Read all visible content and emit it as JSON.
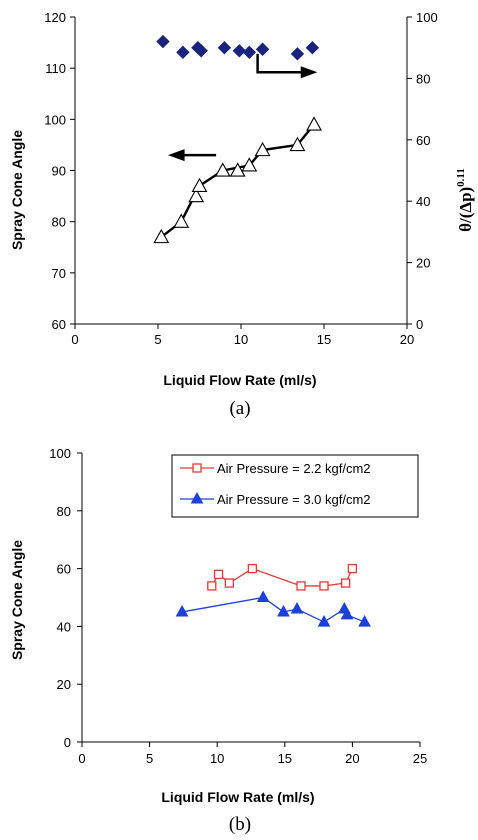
{
  "chart_data": [
    {
      "panel": "(a)",
      "type": "scatter",
      "xlabel": "Liquid Flow Rate (ml/s)",
      "ylabel": "Spray Cone Angle",
      "y2label": "θ/(Δp)0.11",
      "y2label_base": "θ/(Δp)",
      "y2label_exponent": "0.11",
      "xlim": [
        0,
        20
      ],
      "ylim": [
        60,
        120
      ],
      "y2lim": [
        0,
        100
      ],
      "xticks": [
        0,
        5,
        10,
        15,
        20
      ],
      "yticks": [
        60,
        70,
        80,
        90,
        100,
        110,
        120
      ],
      "y2ticks": [
        0,
        20,
        40,
        60,
        80,
        100
      ],
      "grid": false,
      "series": [
        {
          "axis": "left",
          "marker": "open-triangle",
          "color": "#000000",
          "points": [
            {
              "x": 5.2,
              "y": 77
            },
            {
              "x": 6.4,
              "y": 80
            },
            {
              "x": 7.3,
              "y": 85
            },
            {
              "x": 7.5,
              "y": 87
            },
            {
              "x": 8.9,
              "y": 90
            },
            {
              "x": 9.8,
              "y": 90
            },
            {
              "x": 10.5,
              "y": 91
            },
            {
              "x": 11.3,
              "y": 94
            },
            {
              "x": 13.4,
              "y": 95
            },
            {
              "x": 14.4,
              "y": 99
            }
          ],
          "trend": [
            {
              "x": 5.2,
              "y": 77
            },
            {
              "x": 6.4,
              "y": 80
            },
            {
              "x": 7.5,
              "y": 87
            },
            {
              "x": 8.9,
              "y": 90
            },
            {
              "x": 10.5,
              "y": 91
            },
            {
              "x": 11.3,
              "y": 94
            },
            {
              "x": 13.4,
              "y": 95
            },
            {
              "x": 14.4,
              "y": 99
            }
          ]
        },
        {
          "axis": "right",
          "marker": "filled-diamond",
          "color": "#1a237e",
          "points": [
            {
              "x": 5.3,
              "y": 92
            },
            {
              "x": 6.5,
              "y": 88.5
            },
            {
              "x": 7.4,
              "y": 90
            },
            {
              "x": 7.6,
              "y": 89
            },
            {
              "x": 9.0,
              "y": 90
            },
            {
              "x": 9.9,
              "y": 89
            },
            {
              "x": 10.5,
              "y": 88.5
            },
            {
              "x": 11.3,
              "y": 89.5
            },
            {
              "x": 13.4,
              "y": 88
            },
            {
              "x": 14.3,
              "y": 90
            }
          ]
        }
      ],
      "annotations": [
        {
          "type": "arrow",
          "direction": "left",
          "meaning": "triangles use left axis"
        },
        {
          "type": "arrow",
          "direction": "right",
          "meaning": "diamonds use right axis"
        }
      ]
    },
    {
      "panel": "(b)",
      "type": "line",
      "xlabel": "Liquid Flow Rate (ml/s)",
      "ylabel": "Spray Cone Angle",
      "xlim": [
        0,
        25
      ],
      "ylim": [
        0,
        100
      ],
      "xticks": [
        0,
        5,
        10,
        15,
        20,
        25
      ],
      "yticks": [
        0,
        20,
        40,
        60,
        80,
        100
      ],
      "grid": false,
      "legend_position": "top-right",
      "series": [
        {
          "name": "Air Pressure = 2.2 kgf/cm2",
          "color": "#e53935",
          "marker": "open-square",
          "points": [
            {
              "x": 9.6,
              "y": 54
            },
            {
              "x": 10.1,
              "y": 58
            },
            {
              "x": 10.9,
              "y": 55
            },
            {
              "x": 12.6,
              "y": 60
            },
            {
              "x": 16.2,
              "y": 54
            },
            {
              "x": 17.9,
              "y": 54
            },
            {
              "x": 19.5,
              "y": 55
            },
            {
              "x": 20.0,
              "y": 60
            }
          ]
        },
        {
          "name": "Air Pressure = 3.0 kgf/cm2",
          "color": "#1e40d8",
          "marker": "filled-triangle",
          "points": [
            {
              "x": 7.4,
              "y": 45
            },
            {
              "x": 13.4,
              "y": 50
            },
            {
              "x": 14.9,
              "y": 45
            },
            {
              "x": 15.9,
              "y": 46
            },
            {
              "x": 17.9,
              "y": 41.5
            },
            {
              "x": 19.4,
              "y": 46
            },
            {
              "x": 19.6,
              "y": 44
            },
            {
              "x": 20.9,
              "y": 41.5
            }
          ]
        }
      ]
    }
  ]
}
